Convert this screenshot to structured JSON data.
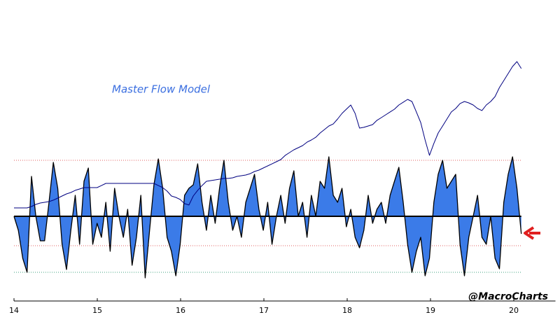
{
  "chart_data": {
    "type": "area",
    "title": "Master Flow Model",
    "annotation": "@MacroCharts",
    "x": [
      2014,
      2014.0525,
      2014.105,
      2014.1575,
      2014.21,
      2014.2625,
      2014.315,
      2014.3675,
      2014.42,
      2014.4725,
      2014.525,
      2014.5775,
      2014.63,
      2014.6825,
      2014.735,
      2014.7875,
      2014.84,
      2014.8925,
      2014.945,
      2014.9975,
      2015.05,
      2015.1025,
      2015.155,
      2015.2075,
      2015.26,
      2015.3125,
      2015.365,
      2015.4175,
      2015.47,
      2015.5225,
      2015.575,
      2015.6275,
      2015.68,
      2015.7325,
      2015.785,
      2015.8375,
      2015.89,
      2015.9425,
      2015.995,
      2016.0475,
      2016.1,
      2016.1525,
      2016.205,
      2016.2575,
      2016.31,
      2016.3625,
      2016.415,
      2016.4675,
      2016.52,
      2016.5725,
      2016.625,
      2016.6775,
      2016.73,
      2016.7825,
      2016.835,
      2016.8875,
      2016.94,
      2016.9925,
      2017.045,
      2017.0975,
      2017.15,
      2017.2025,
      2017.255,
      2017.3075,
      2017.36,
      2017.4125,
      2017.465,
      2017.5175,
      2017.57,
      2017.6225,
      2017.675,
      2017.7275,
      2017.78,
      2017.8325,
      2017.885,
      2017.9375,
      2017.99,
      2018.0425,
      2018.095,
      2018.1475,
      2018.2,
      2018.2525,
      2018.305,
      2018.3575,
      2018.41,
      2018.4625,
      2018.515,
      2018.5675,
      2018.62,
      2018.6725,
      2018.725,
      2018.7775,
      2018.83,
      2018.8825,
      2018.935,
      2018.9875,
      2019.04,
      2019.0925,
      2019.145,
      2019.1975,
      2019.25,
      2019.3025,
      2019.355,
      2019.4075,
      2019.46,
      2019.5125,
      2019.565,
      2019.6175,
      2019.67,
      2019.7225,
      2019.775,
      2019.8275,
      2019.88,
      2019.9325,
      2019.985,
      2020.0375,
      2020.09
    ],
    "series": [
      {
        "type": "area",
        "color": "#3b7be8",
        "line_color": "#000000",
        "values": [
          0,
          -20,
          -60,
          -80,
          57,
          0,
          -35,
          -35,
          20,
          77,
          40,
          -40,
          -76,
          -20,
          30,
          -40,
          50,
          69,
          -40,
          -10,
          -30,
          20,
          -50,
          40,
          0,
          -30,
          10,
          -70,
          -30,
          30,
          -88,
          -20,
          45,
          82,
          40,
          -30,
          -50,
          -85,
          -40,
          30,
          40,
          45,
          75,
          20,
          -20,
          30,
          -10,
          40,
          80,
          20,
          -20,
          0,
          -30,
          20,
          40,
          60,
          10,
          -20,
          20,
          -40,
          0,
          30,
          -10,
          40,
          65,
          0,
          20,
          -30,
          30,
          0,
          50,
          40,
          85,
          30,
          20,
          40,
          -15,
          10,
          -30,
          -45,
          -20,
          30,
          -10,
          10,
          20,
          -10,
          30,
          50,
          70,
          20,
          -40,
          -80,
          -50,
          -30,
          -85,
          -60,
          20,
          60,
          80,
          40,
          50,
          60,
          -40,
          -85,
          -30,
          0,
          30,
          -30,
          -40,
          0,
          -60,
          -75,
          20,
          60,
          85,
          40,
          -25
        ]
      },
      {
        "type": "line",
        "color": "#000080",
        "axis": "y2",
        "values": [
          1830,
          1830,
          1830,
          1830,
          1845,
          1867,
          1882,
          1889,
          1897,
          1912,
          1934,
          1956,
          1978,
          1993,
          2016,
          2030,
          2045,
          2045,
          2045,
          2045,
          2067,
          2090,
          2090,
          2090,
          2090,
          2090,
          2090,
          2090,
          2090,
          2090,
          2090,
          2090,
          2090,
          2067,
          2045,
          2008,
          1956,
          1941,
          1919,
          1875,
          1860,
          1956,
          2016,
          2067,
          2112,
          2119,
          2127,
          2134,
          2142,
          2142,
          2149,
          2164,
          2171,
          2179,
          2193,
          2216,
          2231,
          2253,
          2275,
          2297,
          2320,
          2342,
          2386,
          2416,
          2446,
          2468,
          2490,
          2527,
          2550,
          2579,
          2624,
          2661,
          2698,
          2720,
          2772,
          2832,
          2876,
          2921,
          2832,
          2676,
          2684,
          2698,
          2713,
          2758,
          2787,
          2817,
          2847,
          2876,
          2921,
          2950,
          2980,
          2958,
          2847,
          2735,
          2550,
          2387,
          2513,
          2624,
          2698,
          2772,
          2847,
          2884,
          2936,
          2958,
          2943,
          2921,
          2884,
          2862,
          2921,
          2958,
          3010,
          3106,
          3180,
          3255,
          3329,
          3381,
          3307
        ]
      }
    ],
    "reference_lines": [
      {
        "value": 80,
        "color": "#e06060"
      },
      {
        "value": -42,
        "color": "#e06060"
      },
      {
        "value": -80,
        "color": "#40a080"
      }
    ],
    "xlim": [
      2014,
      2020.5
    ],
    "xticks": [
      {
        "value": 2014,
        "label": "14"
      },
      {
        "value": 2015,
        "label": "15"
      },
      {
        "value": 2016,
        "label": "16"
      },
      {
        "value": 2017,
        "label": "17"
      },
      {
        "value": 2018,
        "label": "18"
      },
      {
        "value": 2019,
        "label": "19"
      },
      {
        "value": 2020,
        "label": "20"
      }
    ],
    "ylim": [
      -121,
      269
    ],
    "y2lim": [
      843,
      3737
    ],
    "grid": false
  }
}
